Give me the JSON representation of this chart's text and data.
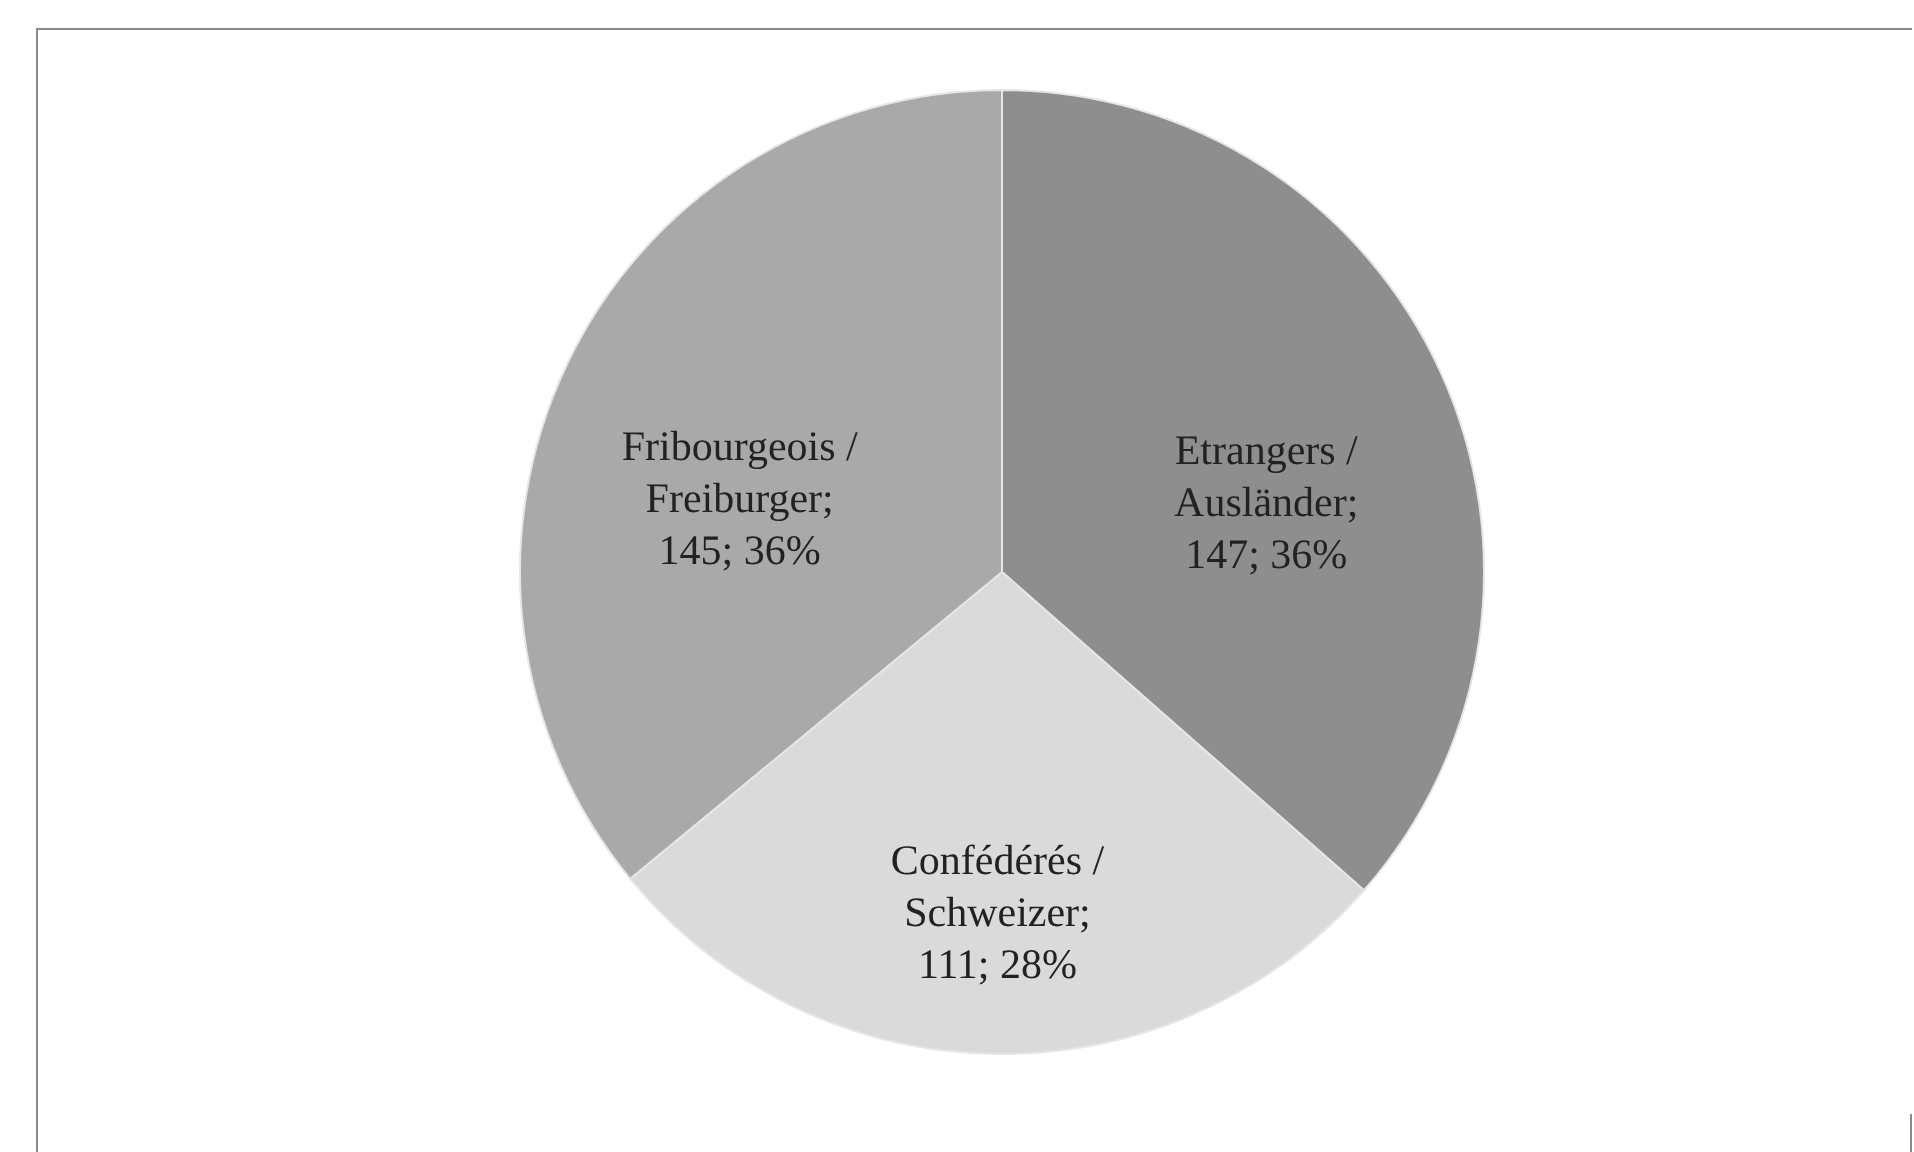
{
  "chart_data": {
    "type": "pie",
    "categories": [
      "Etrangers / Ausländer",
      "Confédérés / Schweizer",
      "Fribourgeois / Freiburger"
    ],
    "values": [
      147,
      111,
      145
    ],
    "colors": [
      "#8e8e8e",
      "#dadada",
      "#a9a9a9"
    ],
    "value_labels": [
      "; 147; 36%",
      "; 111; 28%",
      "; 145; 36%"
    ]
  }
}
